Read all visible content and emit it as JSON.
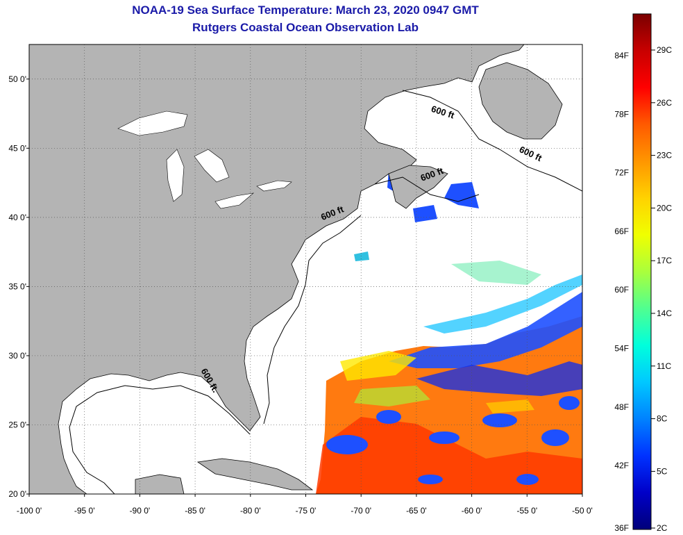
{
  "title": {
    "line1": "NOAA-19 Sea Surface Temperature:  March 23, 2020 0947 GMT",
    "line2": "Rutgers Coastal Ocean Observation Lab"
  },
  "map": {
    "lon_range": [
      -100,
      -50
    ],
    "lat_range": [
      20,
      52.5
    ],
    "lon_ticks": [
      {
        "v": -100,
        "label": "-100 0'"
      },
      {
        "v": -95,
        "label": "-95 0'"
      },
      {
        "v": -90,
        "label": "-90 0'"
      },
      {
        "v": -85,
        "label": "-85 0'"
      },
      {
        "v": -80,
        "label": "-80 0'"
      },
      {
        "v": -75,
        "label": "-75 0'"
      },
      {
        "v": -70,
        "label": "-70 0'"
      },
      {
        "v": -65,
        "label": "-65 0'"
      },
      {
        "v": -60,
        "label": "-60 0'"
      },
      {
        "v": -55,
        "label": "-55 0'"
      },
      {
        "v": -50,
        "label": "-50 0'"
      }
    ],
    "lat_ticks": [
      {
        "v": 20,
        "label": "20 0'"
      },
      {
        "v": 25,
        "label": "25 0'"
      },
      {
        "v": 30,
        "label": "30 0'"
      },
      {
        "v": 35,
        "label": "35 0'"
      },
      {
        "v": 40,
        "label": "40 0'"
      },
      {
        "v": 45,
        "label": "45 0'"
      },
      {
        "v": 50,
        "label": "50 0'"
      }
    ],
    "contour_labels": [
      {
        "text": "600 ft",
        "lon": -62.7,
        "lat": 47.4,
        "rot": 18
      },
      {
        "text": "600 ft",
        "lon": -54.8,
        "lat": 44.4,
        "rot": 25
      },
      {
        "text": "600 ft",
        "lon": -63.5,
        "lat": 42.9,
        "rot": -20
      },
      {
        "text": "600 ft",
        "lon": -72.5,
        "lat": 40.1,
        "rot": -22
      },
      {
        "text": "600 ft.",
        "lon": -83.9,
        "lat": 28.1,
        "rot": 60
      }
    ],
    "land_color": "#b4b4b4",
    "ocean_color": "#ffffff"
  },
  "colorbar": {
    "f_labels": [
      "84F",
      "78F",
      "72F",
      "66F",
      "60F",
      "54F",
      "48F",
      "42F",
      "36F"
    ],
    "c_labels": [
      "29C",
      "26C",
      "23C",
      "20C",
      "17C",
      "14C",
      "11C",
      "8C",
      "5C",
      "2C"
    ],
    "colors": [
      "#7a0000",
      "#c80000",
      "#ff0000",
      "#ff5a00",
      "#ff9600",
      "#ffd200",
      "#f0ff00",
      "#aaff3c",
      "#50ff90",
      "#00ffdc",
      "#00c8ff",
      "#0082ff",
      "#0032ff",
      "#0000c8",
      "#00007a"
    ]
  }
}
